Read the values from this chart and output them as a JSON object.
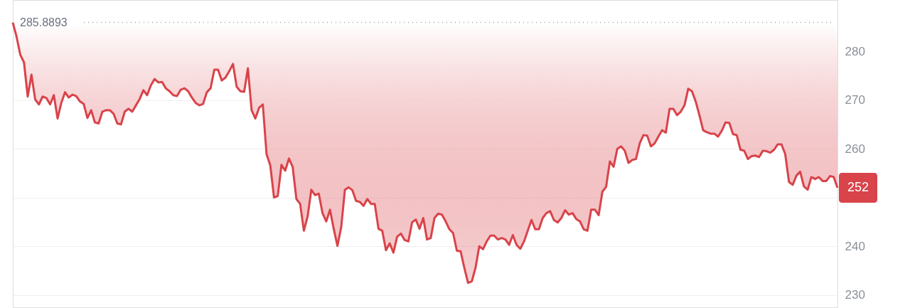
{
  "chart_data": {
    "type": "line",
    "tick_labels": "y",
    "grid": "y",
    "categories": [
      null,
      null,
      null,
      null,
      null,
      null,
      null,
      null,
      null,
      null,
      null,
      null,
      null,
      null,
      null,
      null,
      null,
      null,
      null,
      null,
      null,
      null,
      null,
      null,
      null,
      null,
      null,
      null,
      null,
      null,
      null,
      null,
      null,
      null,
      null,
      null,
      null,
      null,
      null,
      null,
      null,
      null,
      null,
      null,
      null,
      null,
      null,
      null,
      null,
      null,
      null,
      null,
      null,
      null,
      null,
      null,
      null,
      null,
      null,
      null,
      null,
      null,
      null,
      null,
      null,
      null,
      null,
      null,
      null,
      null,
      null,
      null,
      null,
      null,
      null,
      null,
      null,
      null,
      null,
      null,
      null,
      null,
      null,
      null,
      null,
      null,
      null,
      null,
      null,
      null,
      null,
      null,
      null,
      null,
      null,
      null,
      null,
      null,
      null,
      null,
      null,
      null,
      null,
      null,
      null,
      null,
      null,
      null,
      null,
      null,
      null,
      null,
      null,
      null,
      null,
      null,
      null,
      null,
      null,
      null,
      null,
      null,
      null,
      null,
      null,
      null,
      null,
      null,
      null,
      null,
      null,
      null,
      null,
      null,
      null,
      null,
      null,
      null,
      null,
      null,
      null,
      null,
      null,
      null,
      null,
      null,
      null,
      null,
      null,
      null,
      null,
      null,
      null,
      null,
      null,
      null,
      null,
      null,
      null,
      null,
      null,
      null,
      null,
      null,
      null,
      null,
      null,
      null,
      null,
      null,
      null,
      null,
      null,
      null,
      null,
      null,
      null,
      null,
      null,
      null,
      null,
      null,
      null,
      null,
      null,
      null,
      null,
      null,
      null,
      null,
      null,
      null,
      null,
      null,
      null,
      null,
      null,
      null,
      null,
      null,
      null,
      null,
      null,
      null,
      null,
      null,
      null,
      null,
      null,
      null,
      null,
      null,
      null,
      null,
      null,
      null,
      null,
      null,
      null,
      null,
      null,
      null
    ],
    "ylim": [
      227.5,
      290.5
    ],
    "yticks": [
      230,
      240,
      {
        "value": 250,
        "label": null
      },
      260,
      270,
      280
    ],
    "ref_lines": [
      {
        "axis": "y",
        "value": 285.8893,
        "label": "285.8893",
        "color": "#9aa0a6",
        "line_style": "dotted"
      }
    ],
    "series": [
      {
        "color": "#d9434a",
        "values": [
          285.9,
          283.0,
          279.3,
          277.7,
          270.7,
          275.2,
          270.1,
          269.1,
          270.7,
          270.4,
          269.1,
          271.0,
          266.2,
          269.4,
          271.6,
          270.5,
          271.1,
          270.8,
          269.7,
          269.2,
          266.3,
          267.9,
          265.4,
          265.2,
          267.6,
          267.9,
          267.9,
          267.2,
          265.2,
          265.0,
          267.6,
          268.2,
          267.6,
          268.9,
          270.2,
          272.0,
          271.0,
          273.0,
          274.3,
          273.6,
          273.7,
          272.4,
          271.8,
          271.0,
          270.8,
          272.1,
          272.4,
          271.8,
          270.5,
          269.4,
          268.9,
          269.2,
          271.6,
          272.4,
          276.2,
          276.2,
          274.0,
          274.6,
          275.9,
          277.4,
          272.7,
          271.8,
          271.7,
          276.5,
          267.9,
          266.2,
          268.4,
          269.1,
          258.9,
          256.6,
          250.0,
          250.3,
          256.7,
          255.5,
          258.0,
          256.3,
          249.7,
          248.7,
          243.2,
          246.1,
          251.6,
          250.5,
          250.8,
          246.8,
          245.1,
          247.5,
          243.6,
          240.1,
          243.9,
          251.6,
          252.1,
          251.5,
          249.3,
          249.1,
          248.3,
          249.7,
          248.7,
          248.7,
          243.6,
          243.2,
          239.2,
          240.6,
          238.7,
          242.0,
          242.6,
          241.3,
          241.0,
          244.9,
          245.5,
          243.6,
          245.8,
          241.4,
          241.7,
          245.8,
          246.7,
          246.5,
          245.1,
          243.5,
          242.7,
          239.1,
          239.0,
          235.6,
          232.5,
          232.8,
          235.6,
          240.0,
          239.4,
          241.0,
          242.2,
          242.2,
          241.4,
          241.7,
          241.4,
          240.3,
          242.3,
          240.3,
          239.5,
          241.0,
          243.2,
          245.4,
          243.5,
          243.5,
          245.8,
          246.8,
          247.2,
          245.4,
          244.9,
          245.8,
          247.4,
          246.5,
          246.8,
          245.6,
          245.1,
          243.5,
          243.2,
          247.5,
          247.5,
          246.4,
          251.2,
          252.2,
          257.4,
          256.3,
          260.0,
          260.5,
          259.6,
          257.1,
          257.7,
          257.9,
          261.1,
          262.8,
          262.7,
          260.5,
          261.1,
          262.5,
          263.8,
          263.3,
          268.2,
          268.2,
          266.9,
          267.6,
          268.9,
          272.3,
          271.8,
          269.7,
          266.9,
          263.8,
          263.4,
          263.1,
          263.1,
          262.5,
          263.7,
          265.4,
          265.3,
          263.0,
          262.8,
          259.8,
          259.6,
          257.9,
          258.5,
          258.6,
          258.3,
          259.6,
          259.5,
          259.2,
          259.8,
          260.9,
          260.9,
          258.9,
          253.2,
          252.6,
          254.5,
          255.3,
          252.3,
          251.6,
          254.2,
          253.8,
          254.2,
          253.4,
          253.4,
          254.4,
          254.2,
          252.0
        ],
        "lower": [
          285.9,
          283.0,
          279.3,
          277.7,
          270.7,
          275.2,
          270.1,
          269.1,
          270.7,
          270.4,
          269.1,
          271.0,
          266.2,
          269.4,
          271.6,
          270.5,
          271.1,
          270.8,
          269.7,
          269.2,
          266.3,
          267.9,
          265.4,
          265.2,
          267.6,
          267.9,
          267.9,
          267.2,
          265.2,
          265.0,
          267.6,
          268.2,
          267.6,
          268.9,
          270.2,
          272.0,
          271.0,
          273.0,
          274.3,
          273.6,
          273.7,
          272.4,
          271.8,
          271.0,
          270.8,
          272.1,
          272.4,
          271.8,
          270.5,
          269.4,
          268.9,
          269.2,
          271.6,
          272.4,
          276.2,
          276.2,
          274.0,
          274.6,
          275.9,
          277.4,
          272.7,
          271.8,
          271.7,
          276.5,
          267.9,
          266.2,
          268.4,
          269.1,
          258.9,
          256.6,
          250.0,
          250.3,
          256.7,
          255.5,
          258.0,
          256.3,
          249.7,
          248.7,
          243.2,
          246.1,
          251.6,
          250.5,
          250.8,
          246.8,
          245.1,
          247.5,
          243.6,
          240.1,
          243.9,
          251.6,
          252.1,
          251.5,
          249.3,
          249.1,
          248.3,
          249.7,
          248.7,
          248.7,
          243.6,
          243.2,
          239.2,
          240.6,
          238.7,
          242.0,
          242.6,
          241.3,
          241.0,
          244.9,
          245.5,
          243.6,
          245.8,
          241.4,
          241.7,
          245.8,
          246.7,
          246.5,
          245.1,
          243.5,
          242.7,
          239.1,
          239.0,
          235.6,
          232.5,
          232.8,
          235.6,
          240.0,
          239.4,
          241.0,
          242.2,
          242.2,
          241.4,
          241.7,
          241.4,
          240.3,
          242.3,
          240.3,
          239.5,
          241.0,
          243.2,
          245.4,
          243.5,
          243.5,
          245.8,
          246.8,
          247.2,
          245.4,
          244.9,
          245.8,
          247.4,
          246.5,
          246.8,
          245.6,
          245.1,
          243.5,
          243.2,
          247.5,
          247.5,
          246.4,
          251.2,
          252.2,
          257.4,
          256.3,
          260.0,
          260.5,
          259.6,
          257.1,
          257.7,
          257.9,
          261.1,
          262.8,
          262.7,
          260.5,
          261.1,
          262.5,
          263.8,
          263.3,
          268.2,
          268.2,
          266.9,
          267.6,
          268.9,
          272.3,
          271.8,
          269.7,
          266.9,
          263.8,
          263.4,
          263.1,
          263.1,
          262.5,
          263.7,
          265.4,
          265.3,
          263.0,
          262.8,
          259.8,
          259.6,
          257.9,
          258.5,
          258.6,
          258.3,
          259.6,
          259.5,
          259.2,
          259.8,
          260.9,
          260.9,
          258.9,
          253.2,
          252.6,
          254.5,
          255.3,
          252.3,
          251.6,
          254.2,
          253.8,
          254.2,
          253.4,
          253.4,
          254.4,
          254.2,
          252.0
        ],
        "upper": [
          285.8893,
          285.8893,
          285.8893,
          285.8893,
          285.8893,
          285.8893,
          285.8893,
          285.8893,
          285.8893,
          285.8893,
          285.8893,
          285.8893,
          285.8893,
          285.8893,
          285.8893,
          285.8893,
          285.8893,
          285.8893,
          285.8893,
          285.8893,
          285.8893,
          285.8893,
          285.8893,
          285.8893,
          285.8893,
          285.8893,
          285.8893,
          285.8893,
          285.8893,
          285.8893,
          285.8893,
          285.8893,
          285.8893,
          285.8893,
          285.8893,
          285.8893,
          285.8893,
          285.8893,
          285.8893,
          285.8893,
          285.8893,
          285.8893,
          285.8893,
          285.8893,
          285.8893,
          285.8893,
          285.8893,
          285.8893,
          285.8893,
          285.8893,
          285.8893,
          285.8893,
          285.8893,
          285.8893,
          285.8893,
          285.8893,
          285.8893,
          285.8893,
          285.8893,
          285.8893,
          285.8893,
          285.8893,
          285.8893,
          285.8893,
          285.8893,
          285.8893,
          285.8893,
          285.8893,
          285.8893,
          285.8893,
          285.8893,
          285.8893,
          285.8893,
          285.8893,
          285.8893,
          285.8893,
          285.8893,
          285.8893,
          285.8893,
          285.8893,
          285.8893,
          285.8893,
          285.8893,
          285.8893,
          285.8893,
          285.8893,
          285.8893,
          285.8893,
          285.8893,
          285.8893,
          285.8893,
          285.8893,
          285.8893,
          285.8893,
          285.8893,
          285.8893,
          285.8893,
          285.8893,
          285.8893,
          285.8893,
          285.8893,
          285.8893,
          285.8893,
          285.8893,
          285.8893,
          285.8893,
          285.8893,
          285.8893,
          285.8893,
          285.8893,
          285.8893,
          285.8893,
          285.8893,
          285.8893,
          285.8893,
          285.8893,
          285.8893,
          285.8893,
          285.8893,
          285.8893,
          285.8893,
          285.8893,
          285.8893,
          285.8893,
          285.8893,
          285.8893,
          285.8893,
          285.8893,
          285.8893,
          285.8893,
          285.8893,
          285.8893,
          285.8893,
          285.8893,
          285.8893,
          285.8893,
          285.8893,
          285.8893,
          285.8893,
          285.8893,
          285.8893,
          285.8893,
          285.8893,
          285.8893,
          285.8893,
          285.8893,
          285.8893,
          285.8893,
          285.8893,
          285.8893,
          285.8893,
          285.8893,
          285.8893,
          285.8893,
          285.8893,
          285.8893,
          285.8893,
          285.8893,
          285.8893,
          285.8893,
          285.8893,
          285.8893,
          285.8893,
          285.8893,
          285.8893,
          285.8893,
          285.8893,
          285.8893,
          285.8893,
          285.8893,
          285.8893,
          285.8893,
          285.8893,
          285.8893,
          285.8893,
          285.8893,
          285.8893,
          285.8893,
          285.8893,
          285.8893,
          285.8893,
          285.8893,
          285.8893,
          285.8893,
          285.8893,
          285.8893,
          285.8893,
          285.8893,
          285.8893,
          285.8893,
          285.8893,
          285.8893,
          285.8893,
          285.8893,
          285.8893,
          285.8893,
          285.8893,
          285.8893,
          285.8893,
          285.8893,
          285.8893,
          285.8893,
          285.8893,
          285.8893,
          285.8893,
          285.8893,
          285.8893,
          285.8893,
          285.8893,
          285.8893,
          285.8893,
          285.8893,
          285.8893,
          285.8893,
          285.8893,
          285.8893,
          285.8893,
          285.8893,
          285.8893,
          285.8893,
          285.8893,
          285.8893
        ],
        "value_labels": [
          null,
          null,
          null,
          null,
          null,
          null,
          null,
          null,
          null,
          null,
          null,
          null,
          null,
          null,
          null,
          null,
          null,
          null,
          null,
          null,
          null,
          null,
          null,
          null,
          null,
          null,
          null,
          null,
          null,
          null,
          null,
          null,
          null,
          null,
          null,
          null,
          null,
          null,
          null,
          null,
          null,
          null,
          null,
          null,
          null,
          null,
          null,
          null,
          null,
          null,
          null,
          null,
          null,
          null,
          null,
          null,
          null,
          null,
          null,
          null,
          null,
          null,
          null,
          null,
          null,
          null,
          null,
          null,
          null,
          null,
          null,
          null,
          null,
          null,
          null,
          null,
          null,
          null,
          null,
          null,
          null,
          null,
          null,
          null,
          null,
          null,
          null,
          null,
          null,
          null,
          null,
          null,
          null,
          null,
          null,
          null,
          null,
          null,
          null,
          null,
          null,
          null,
          null,
          null,
          null,
          null,
          null,
          null,
          null,
          null,
          null,
          null,
          null,
          null,
          null,
          null,
          null,
          null,
          null,
          null,
          null,
          null,
          null,
          null,
          null,
          null,
          null,
          null,
          null,
          null,
          null,
          null,
          null,
          null,
          null,
          null,
          null,
          null,
          null,
          null,
          null,
          null,
          null,
          null,
          null,
          null,
          null,
          null,
          null,
          null,
          null,
          null,
          null,
          null,
          null,
          null,
          null,
          null,
          null,
          null,
          null,
          null,
          null,
          null,
          null,
          null,
          null,
          null,
          null,
          null,
          null,
          null,
          null,
          null,
          null,
          null,
          null,
          null,
          null,
          null,
          null,
          null,
          null,
          null,
          null,
          null,
          null,
          null,
          null,
          null,
          null,
          null,
          null,
          null,
          null,
          null,
          null,
          null,
          null,
          null,
          null,
          null,
          null,
          null,
          null,
          null,
          null,
          null,
          null,
          null,
          null,
          null,
          null,
          null,
          null,
          null,
          null,
          null,
          null,
          null,
          null,
          "252"
        ]
      }
    ]
  }
}
